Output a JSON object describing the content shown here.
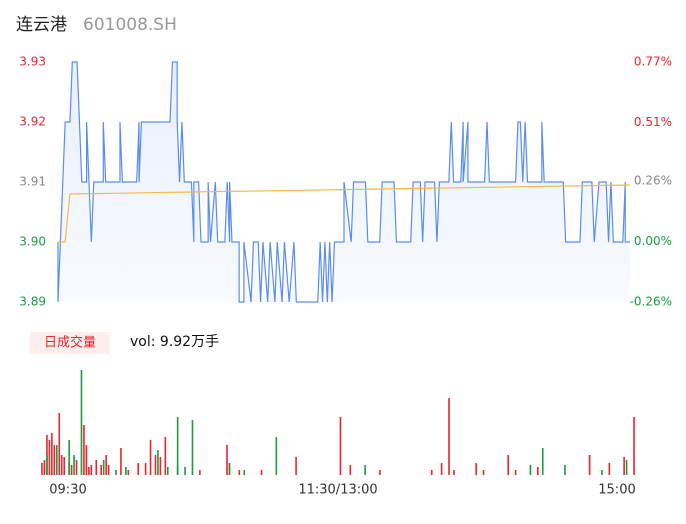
{
  "chart_data": {
    "type": "intraday",
    "title": "连云港",
    "subtitle": "601008.SH",
    "xlim": [
      0,
      240
    ],
    "xticks": [
      {
        "value": 0,
        "label": "09:30"
      },
      {
        "value": 120,
        "label": "11:30/13:00"
      },
      {
        "value": 240,
        "label": "15:00"
      }
    ],
    "ylim": [
      3.89,
      3.93
    ],
    "yticks": [
      3.93,
      3.92,
      3.91,
      {
        "value": 3.9,
        "label": "3.90"
      },
      3.89
    ],
    "ytick_colors": [
      "#e8252f",
      "#e8252f",
      "#888888",
      "#1a9c3e",
      "#1a9c3e"
    ],
    "y2lim": [
      -0.26,
      0.77
    ],
    "y2ticks": [
      {
        "value": 0.77,
        "label": "0.77%"
      },
      {
        "value": 0.51,
        "label": "0.51%"
      },
      {
        "value": 0.26,
        "label": "0.26%"
      },
      {
        "value": 0,
        "label": "0.00%"
      },
      {
        "value": -0.26,
        "label": "-0.26%"
      }
    ],
    "series": [
      {
        "name": "price",
        "color": "#5b8def",
        "x": [
          0,
          0,
          2,
          3,
          5,
          6,
          8,
          9,
          10,
          12,
          12,
          13,
          14,
          15,
          19,
          19,
          20,
          26,
          26,
          27,
          33,
          34,
          34,
          35,
          47,
          48,
          50,
          50,
          51,
          52,
          53,
          56,
          57,
          57,
          59,
          60,
          63,
          63,
          64,
          66,
          67,
          70,
          71,
          72,
          72,
          73,
          76,
          76,
          78,
          78,
          81,
          82,
          84,
          85,
          86,
          88,
          89,
          91,
          92,
          94,
          95,
          97,
          99,
          100,
          109,
          110,
          111,
          112,
          113,
          114,
          115,
          116,
          120,
          120,
          123,
          124,
          129,
          130,
          135,
          136,
          141,
          142,
          148,
          149,
          152,
          153,
          154,
          158,
          159,
          160,
          164,
          165,
          166,
          169,
          170,
          170,
          172,
          172,
          179,
          180,
          181,
          192,
          193,
          194,
          195,
          196,
          197,
          203,
          203,
          204,
          212,
          213,
          219,
          220,
          224,
          225,
          227,
          230,
          231,
          232,
          233,
          237,
          238,
          238,
          240
        ],
        "values": [
          3.9,
          3.89,
          3.91,
          3.92,
          3.92,
          3.93,
          3.93,
          3.92,
          3.91,
          3.91,
          3.92,
          3.91,
          3.9,
          3.91,
          3.91,
          3.92,
          3.91,
          3.91,
          3.92,
          3.91,
          3.91,
          3.92,
          3.91,
          3.92,
          3.92,
          3.93,
          3.93,
          3.92,
          3.91,
          3.92,
          3.91,
          3.91,
          3.9,
          3.91,
          3.91,
          3.9,
          3.9,
          3.91,
          3.9,
          3.91,
          3.9,
          3.9,
          3.91,
          3.9,
          3.91,
          3.9,
          3.9,
          3.89,
          3.89,
          3.9,
          3.89,
          3.9,
          3.9,
          3.89,
          3.9,
          3.89,
          3.9,
          3.89,
          3.9,
          3.89,
          3.9,
          3.89,
          3.9,
          3.89,
          3.89,
          3.9,
          3.89,
          3.9,
          3.89,
          3.9,
          3.89,
          3.9,
          3.9,
          3.91,
          3.9,
          3.91,
          3.91,
          3.9,
          3.9,
          3.91,
          3.91,
          3.9,
          3.9,
          3.91,
          3.91,
          3.9,
          3.91,
          3.91,
          3.9,
          3.91,
          3.91,
          3.92,
          3.91,
          3.91,
          3.92,
          3.91,
          3.92,
          3.91,
          3.91,
          3.92,
          3.91,
          3.91,
          3.92,
          3.92,
          3.91,
          3.92,
          3.91,
          3.91,
          3.92,
          3.91,
          3.91,
          3.9,
          3.9,
          3.91,
          3.91,
          3.9,
          3.91,
          3.91,
          3.9,
          3.91,
          3.9,
          3.9,
          3.91,
          3.9,
          3.9
        ]
      },
      {
        "name": "average",
        "color": "#f5b94a",
        "x": [
          0,
          3,
          5,
          240
        ],
        "values": [
          3.9,
          3.9,
          3.908,
          3.9095
        ]
      }
    ],
    "volume_tab": "日成交量",
    "volume_text": "vol: 9.92万手",
    "vlim": [
      0,
      110
    ],
    "volume": [
      {
        "name": "up",
        "color": "#e8252f",
        "x": [
          0,
          1,
          2,
          3,
          4,
          5,
          7,
          8,
          9,
          11,
          12,
          14,
          17,
          18,
          19,
          20,
          22,
          24,
          26,
          27,
          32,
          35,
          39,
          42,
          44,
          46,
          48,
          50,
          55,
          64,
          75,
          76,
          80,
          89,
          103,
          121,
          125,
          137,
          158,
          162,
          165,
          167,
          176,
          179,
          189,
          192,
          201,
          222,
          230,
          236,
          240
        ],
        "values": [
          12,
          15,
          40,
          35,
          42,
          30,
          62,
          20,
          18,
          12,
          10,
          15,
          50,
          30,
          8,
          10,
          15,
          10,
          20,
          10,
          27,
          5,
          12,
          12,
          35,
          20,
          18,
          38,
          10,
          5,
          30,
          12,
          5,
          5,
          18,
          58,
          10,
          5,
          5,
          12,
          77,
          5,
          12,
          5,
          20,
          5,
          8,
          20,
          12,
          18,
          58
        ]
      },
      {
        "name": "down",
        "color": "#1a9c3e",
        "x": [
          2,
          6,
          11,
          13,
          16,
          25,
          30,
          34,
          47,
          51,
          55,
          58,
          61,
          76,
          82,
          95,
          131,
          198,
          203,
          212,
          227,
          237
        ],
        "values": [
          20,
          30,
          35,
          20,
          105,
          15,
          5,
          8,
          25,
          8,
          58,
          8,
          55,
          10,
          5,
          38,
          10,
          10,
          27,
          10,
          5,
          15
        ]
      }
    ]
  }
}
